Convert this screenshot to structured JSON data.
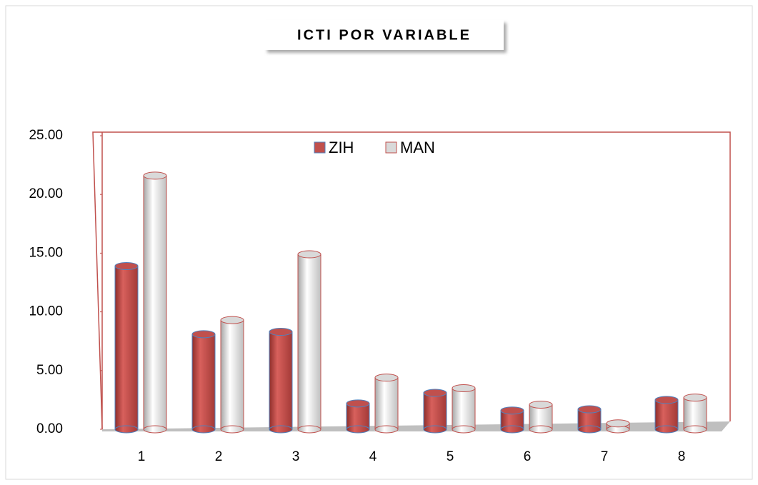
{
  "chart_data": {
    "type": "bar3d",
    "title": "ICTI POR VARIABLE",
    "categories": [
      "1",
      "2",
      "3",
      "4",
      "5",
      "6",
      "7",
      "8"
    ],
    "series": [
      {
        "name": "ZIH",
        "color": "#c0504d",
        "values": [
          13.9,
          8.1,
          8.3,
          2.2,
          3.1,
          1.6,
          1.7,
          2.5
        ]
      },
      {
        "name": "MAN",
        "color": "#d9d9d9",
        "values": [
          21.6,
          9.3,
          14.9,
          4.4,
          3.5,
          2.1,
          0.5,
          2.7
        ]
      }
    ],
    "ylim": [
      0,
      25
    ],
    "yticks": [
      {
        "value": 0,
        "label": "0.00"
      },
      {
        "value": 5,
        "label": "5.00"
      },
      {
        "value": 10,
        "label": "10.00"
      },
      {
        "value": 15,
        "label": "15.00"
      },
      {
        "value": 20,
        "label": "20.00"
      },
      {
        "value": 25,
        "label": "25.00"
      }
    ],
    "legend": "top"
  }
}
